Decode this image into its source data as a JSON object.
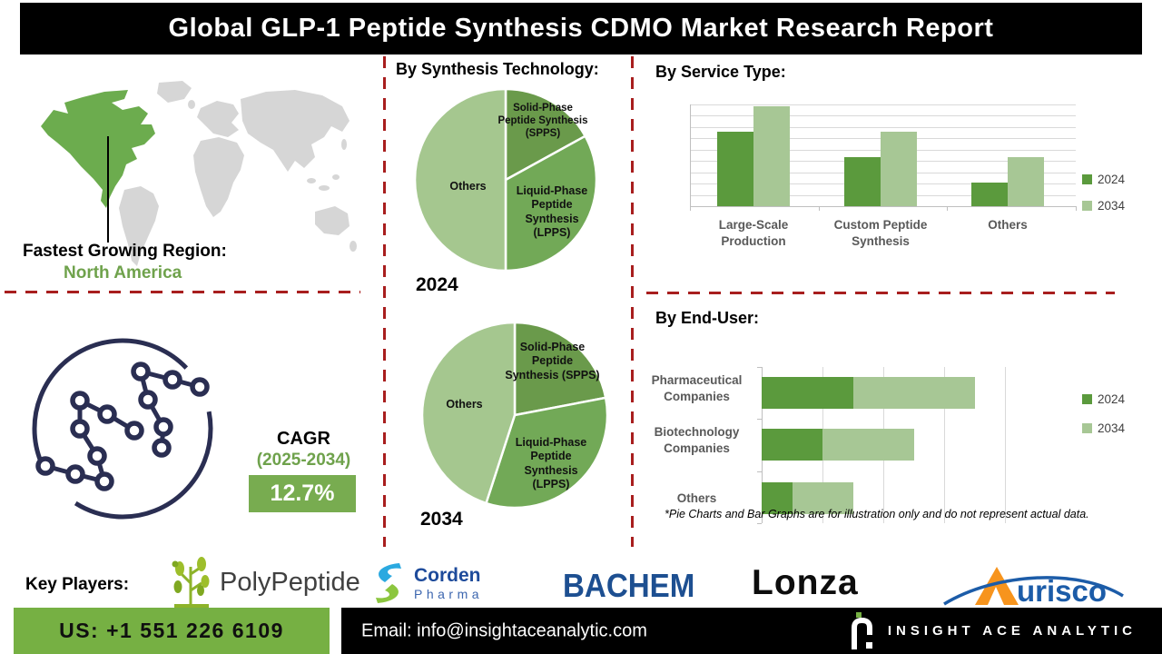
{
  "header": {
    "title": "Global GLP-1 Peptide Synthesis CDMO Market  Research Report"
  },
  "region": {
    "label": "Fastest Growing Region:",
    "value": "North America"
  },
  "cagr": {
    "label": "CAGR",
    "period": "(2025-2034)",
    "value": "12.7%"
  },
  "footnote": "*Pie Charts and Bar Graphs are for illustration only and do not represent actual data.",
  "key_players": {
    "label": "Key Players:",
    "companies": [
      {
        "name": "PolyPeptide"
      },
      {
        "name": "Corden Pharma",
        "line1": "Corden",
        "line2": "Pharma"
      },
      {
        "name": "BACHEM"
      },
      {
        "name": "Lonza"
      },
      {
        "name": "Aurisco",
        "display_text": "urisco"
      }
    ]
  },
  "footer": {
    "phone": "US: +1 551 226 6109",
    "email": "Email: info@insightaceanalytic.com",
    "brand": "INSIGHT ACE ANALYTIC"
  },
  "colors": {
    "series_2024": "#5b9a3d",
    "series_2034": "#a7c795",
    "pie_spps": "#6a9a4b",
    "pie_lpps": "#72a957",
    "pie_others": "#a5c78f",
    "divider_red": "#a81e1e",
    "map_highlight_green": "#6cac4e",
    "map_gray": "#d6d6d6",
    "molecule_navy": "#2a2e52",
    "cagr_green": "#6fa24c",
    "cagr_box_green": "#78ac50",
    "footer_green": "#76b043"
  },
  "chart_data": [
    {
      "id": "synthesis-technology-2024",
      "type": "pie",
      "title": "By Synthesis Technology:",
      "year": "2024",
      "labels": [
        "Solid-Phase Peptide Synthesis (SPPS)",
        "Liquid-Phase Peptide Synthesis (LPPS)",
        "Others"
      ],
      "values_percent": [
        17,
        33,
        50
      ],
      "colors": [
        "#6a9a4b",
        "#72a957",
        "#a5c78f"
      ],
      "legend_position": "none"
    },
    {
      "id": "synthesis-technology-2034",
      "type": "pie",
      "year": "2034",
      "labels": [
        "Solid-Phase Peptide Synthesis (SPPS)",
        "Liquid-Phase Peptide Synthesis (LPPS)",
        "Others"
      ],
      "values_percent": [
        22,
        33,
        45
      ],
      "colors": [
        "#6a9a4b",
        "#72a957",
        "#a5c78f"
      ],
      "legend_position": "none"
    },
    {
      "id": "service-type",
      "type": "bar",
      "title": "By Service Type:",
      "categories": [
        "Large-Scale Production",
        "Custom Peptide Synthesis",
        "Others"
      ],
      "series": [
        {
          "name": "2024",
          "color": "#5b9a3d",
          "values": [
            6.6,
            4.3,
            2.1
          ]
        },
        {
          "name": "2034",
          "color": "#a7c795",
          "values": [
            8.8,
            6.6,
            4.3
          ]
        }
      ],
      "ylim": [
        0,
        9
      ],
      "grid": "horizontal",
      "legend_position": "right"
    },
    {
      "id": "end-user",
      "type": "bar",
      "orientation": "horizontal",
      "stacked": true,
      "title": "By End-User:",
      "categories": [
        "Pharmaceutical Companies",
        "Biotechnology Companies",
        "Others"
      ],
      "series": [
        {
          "name": "2024",
          "color": "#5b9a3d",
          "values": [
            1.5,
            1.0,
            0.5
          ]
        },
        {
          "name": "2034",
          "color": "#a7c795",
          "values": [
            2.0,
            1.5,
            1.0
          ]
        }
      ],
      "xlim": [
        0,
        4
      ],
      "grid": "vertical",
      "legend_position": "right"
    }
  ]
}
